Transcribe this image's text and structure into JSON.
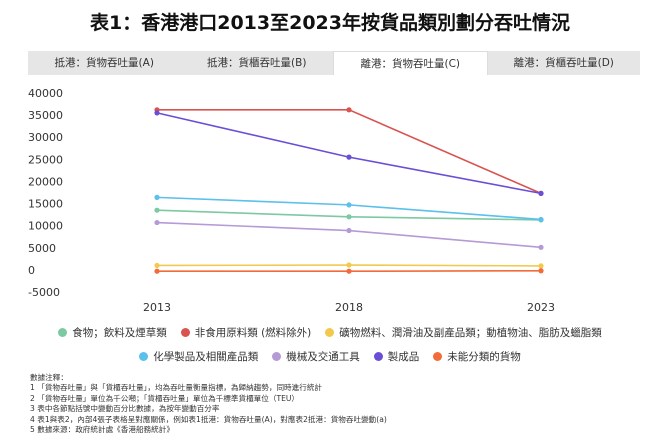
{
  "title": "表1：香港港口2013至2023年按貨品類別劃分吞吐情況",
  "tabs": [
    {
      "label": "抵港：貨物吞吐量(A)",
      "active": false
    },
    {
      "label": "抵港：貨櫃吞吐量(B)",
      "active": false
    },
    {
      "label": "離港：貨物吞吐量(C)",
      "active": true
    },
    {
      "label": "離港：貨櫃吞吐量(D)",
      "active": false
    }
  ],
  "chart_data": {
    "type": "line",
    "x": [
      "2013",
      "2018",
      "2023"
    ],
    "ylim": [
      -5000,
      40000
    ],
    "yticks": [
      -5000,
      0,
      5000,
      10000,
      15000,
      20000,
      25000,
      30000,
      35000,
      40000
    ],
    "ytick_labels": [
      "-5000",
      "0",
      "5000",
      "10000",
      "15000",
      "20000",
      "25000",
      "30000",
      "35000",
      "40000"
    ],
    "grid": false,
    "legend_position": "bottom",
    "series": [
      {
        "name": "食物；飲料及煙草類",
        "color": "#7dc9a2",
        "values": [
          13500,
          12000,
          11300
        ]
      },
      {
        "name": "非食用原料類 (燃料除外)",
        "color": "#d9534f",
        "values": [
          36200,
          36200,
          17300
        ]
      },
      {
        "name": "礦物燃料、潤滑油及副產品類；動植物油、脂肪及蠟脂類",
        "color": "#f2c94c",
        "values": [
          1000,
          1100,
          900
        ]
      },
      {
        "name": "化學製品及相關產品類",
        "color": "#5bc0eb",
        "values": [
          16400,
          14700,
          11400
        ]
      },
      {
        "name": "機械及交通工具",
        "color": "#b49ad6",
        "values": [
          10700,
          8900,
          5100
        ]
      },
      {
        "name": "製成品",
        "color": "#6a4fd6",
        "values": [
          35500,
          25500,
          17300
        ]
      },
      {
        "name": "未能分類的貨物",
        "color": "#f26b38",
        "values": [
          -300,
          -300,
          -200
        ]
      }
    ]
  },
  "legend_row1": [
    "食物；飲料及煙草類",
    "非食用原料類 (燃料除外)",
    "礦物燃料、潤滑油及副產品類；動植物油、脂肪及蠟脂類"
  ],
  "legend_row2": [
    "化學製品及相關產品類",
    "機械及交通工具",
    "製成品",
    "未能分類的貨物"
  ],
  "notes": {
    "heading": "數據注釋：",
    "lines": [
      "1 「貨物吞吐量」與「貨櫃吞吐量」，均為吞吐量衡量指標，為歸納趨勢，同時進行統計",
      "2 「貨物吞吐量」單位為千公噸；「貨櫃吞吐量」單位為千標準貨櫃單位（TEU）",
      "3 表中各節點括號中變動百分比數據，為按年變動百分率",
      "4 表1與表2，內部4張子表格呈對應關係，例如表1抵港：貨物吞吐量(A)，對應表2抵港：貨物吞吐變動(a)",
      "5 數據來源：政府統計處《香港船務統計》"
    ]
  }
}
